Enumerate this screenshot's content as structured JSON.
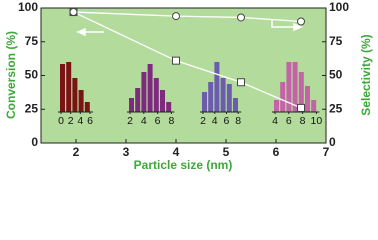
{
  "chart_data": {
    "type": "line",
    "x_label": "Particle size (nm)",
    "y_label": "Conversion (%)",
    "y2_label": "Selectivity (%)",
    "xlim": [
      1.3,
      7
    ],
    "xticks": [
      2,
      3,
      4,
      5,
      6,
      7
    ],
    "ylim": [
      0,
      100
    ],
    "yticks": [
      0,
      25,
      50,
      75,
      100
    ],
    "y2lim": [
      0,
      100
    ],
    "y2ticks": [
      0,
      25,
      50,
      75,
      100
    ],
    "background": "#b3dc9c",
    "axis_color": "#3da83a",
    "series": [
      {
        "marker": "square",
        "color": "#ffffff",
        "x": [
          1.95,
          4,
          5.3,
          6.5
        ],
        "values": [
          97,
          61,
          45,
          26
        ]
      },
      {
        "marker": "circle",
        "color": "#ffffff",
        "axis": "y2",
        "x": [
          1.95,
          4,
          5.3,
          6.5
        ],
        "values": [
          97,
          94,
          93,
          90
        ]
      }
    ],
    "insets": [
      {
        "color": "#7a1414",
        "xticks": [
          0,
          2,
          4,
          6
        ],
        "values": [
          48,
          50,
          34,
          22,
          10
        ]
      },
      {
        "color": "#7e2a7e",
        "xticks": [
          2,
          4,
          6,
          8
        ],
        "values": [
          14,
          24,
          40,
          48,
          34,
          22,
          10
        ]
      },
      {
        "color": "#6c5cae",
        "xticks": [
          2,
          4,
          6,
          8
        ],
        "values": [
          20,
          30,
          50,
          34,
          28,
          14
        ]
      },
      {
        "color": "#c463a6",
        "xticks": [
          4,
          6,
          8,
          10
        ],
        "values": [
          12,
          30,
          50,
          50,
          40,
          26,
          12
        ]
      }
    ]
  }
}
